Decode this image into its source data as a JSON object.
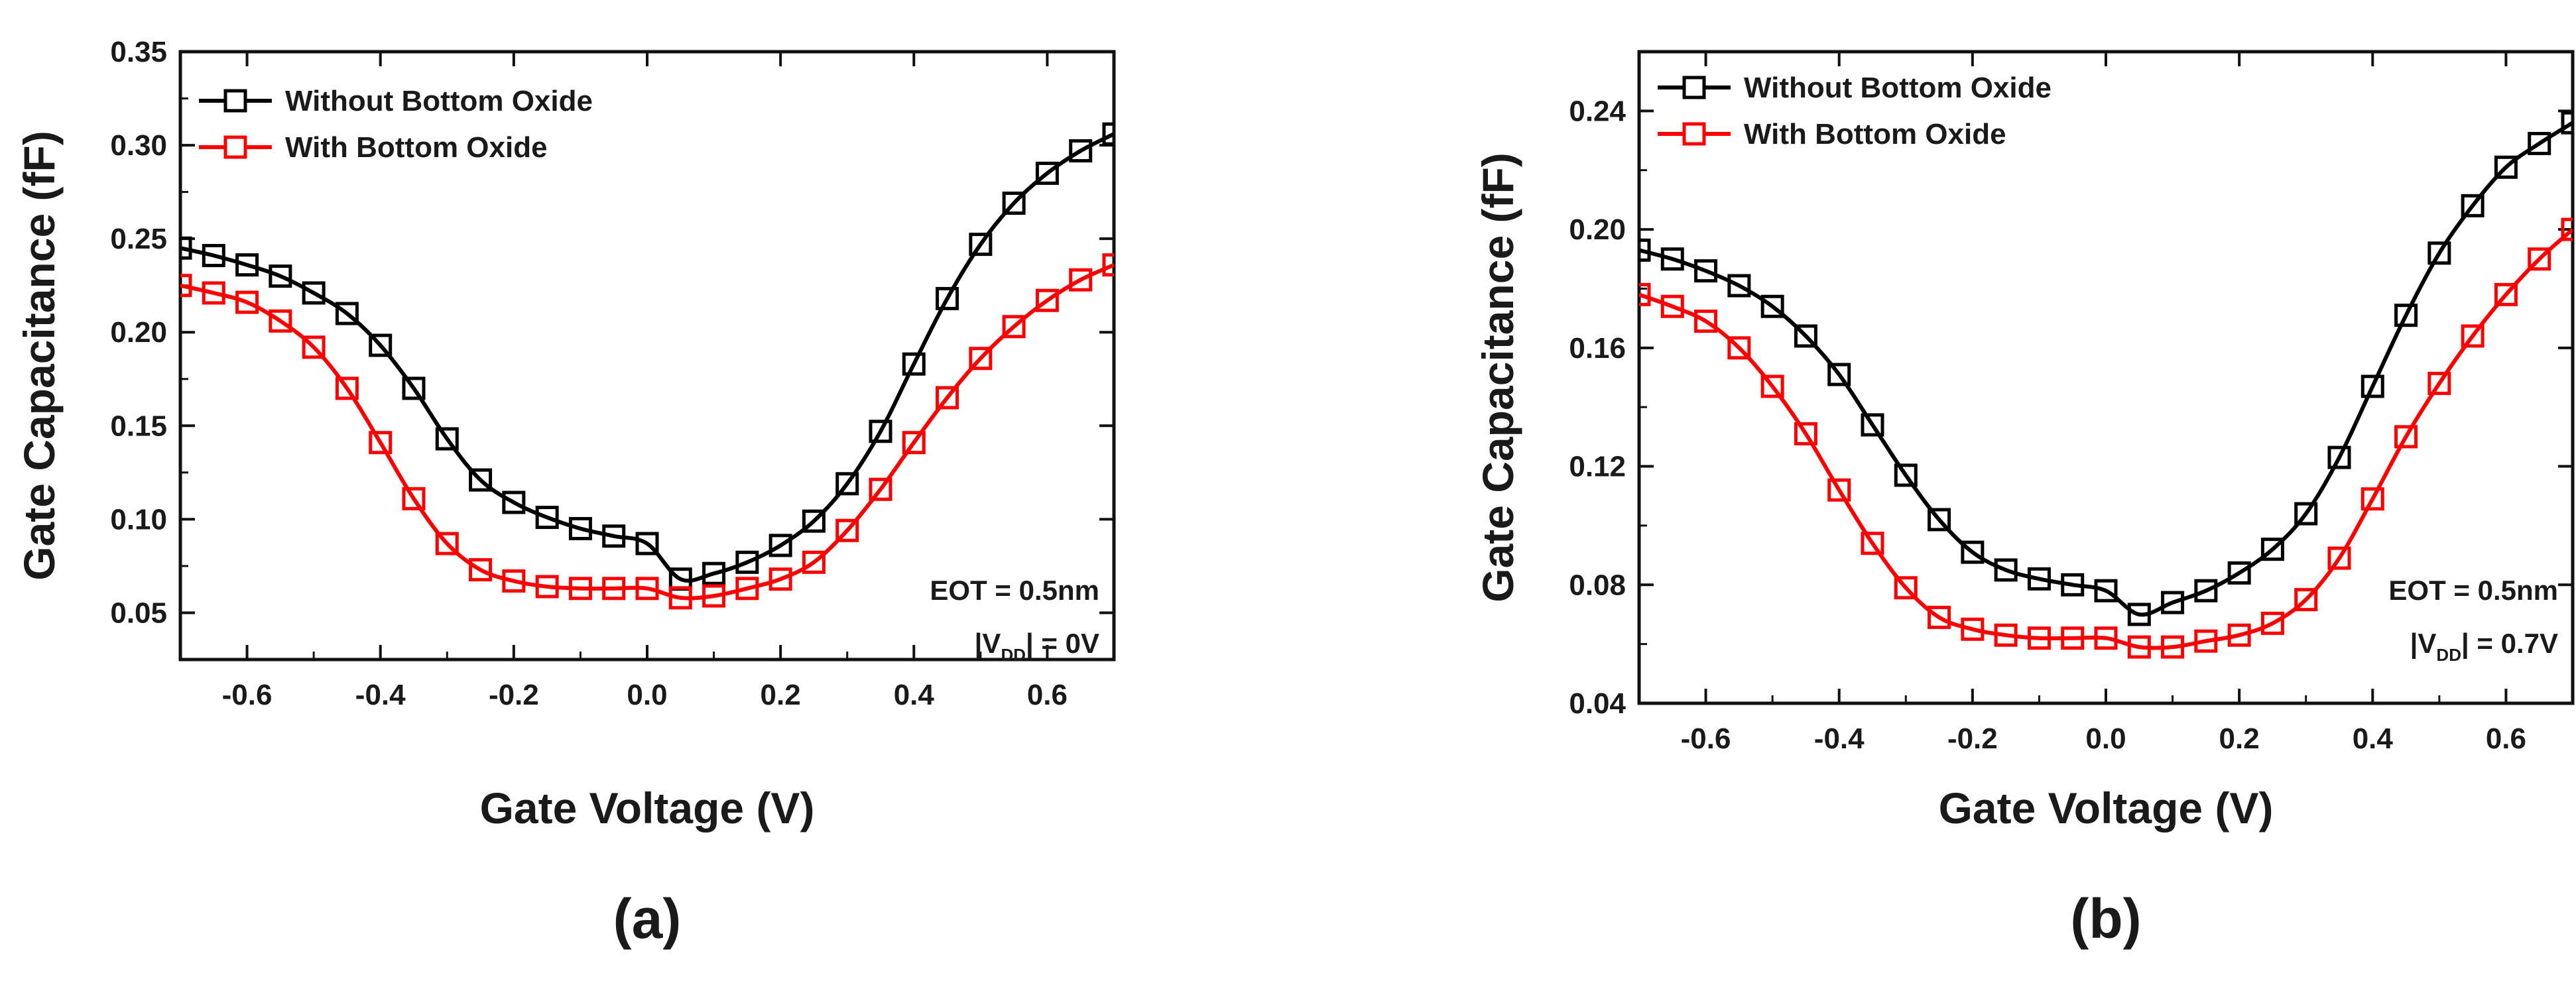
{
  "chart_data": [
    {
      "type": "line",
      "panel_label": "(a)",
      "xlabel": "Gate Voltage (V)",
      "ylabel": "Gate Capacitance (fF)",
      "xlim": [
        -0.7,
        0.7
      ],
      "ylim": [
        0.025,
        0.35
      ],
      "xticks": [
        -0.6,
        -0.4,
        -0.2,
        0.0,
        0.2,
        0.4,
        0.6
      ],
      "xtick_labels": [
        "-0.6",
        "-0.4",
        "-0.2",
        "0.0",
        "0.2",
        "0.4",
        "0.6"
      ],
      "yticks": [
        0.05,
        0.1,
        0.15,
        0.2,
        0.25,
        0.3,
        0.35
      ],
      "ytick_labels": [
        "0.05",
        "0.10",
        "0.15",
        "0.20",
        "0.25",
        "0.30",
        "0.35"
      ],
      "legend_position": "top-left",
      "annotation": {
        "line1": "EOT = 0.5nm",
        "line2_prefix": "|V",
        "line2_sub": "DD",
        "line2_suffix": "| = 0V"
      },
      "x": [
        -0.7,
        -0.65,
        -0.6,
        -0.55,
        -0.5,
        -0.45,
        -0.4,
        -0.35,
        -0.3,
        -0.25,
        -0.2,
        -0.15,
        -0.1,
        -0.05,
        0.0,
        0.05,
        0.1,
        0.15,
        0.2,
        0.25,
        0.3,
        0.35,
        0.4,
        0.45,
        0.5,
        0.55,
        0.6,
        0.65,
        0.7
      ],
      "series": [
        {
          "name": "Without Bottom Oxide",
          "color": "#000000",
          "values": [
            0.245,
            0.241,
            0.236,
            0.23,
            0.221,
            0.21,
            0.193,
            0.17,
            0.143,
            0.121,
            0.109,
            0.101,
            0.095,
            0.091,
            0.087,
            0.068,
            0.071,
            0.077,
            0.086,
            0.099,
            0.119,
            0.147,
            0.183,
            0.218,
            0.247,
            0.269,
            0.285,
            0.297,
            0.306
          ]
        },
        {
          "name": "With Bottom Oxide",
          "color": "#ff0000",
          "values": [
            0.225,
            0.221,
            0.216,
            0.206,
            0.192,
            0.17,
            0.141,
            0.111,
            0.087,
            0.073,
            0.067,
            0.064,
            0.063,
            0.063,
            0.063,
            0.058,
            0.059,
            0.063,
            0.068,
            0.077,
            0.094,
            0.116,
            0.141,
            0.165,
            0.186,
            0.203,
            0.217,
            0.228,
            0.236
          ]
        }
      ]
    },
    {
      "type": "line",
      "panel_label": "(b)",
      "xlabel": "Gate Voltage (V)",
      "ylabel": "Gate Capacitance (fF)",
      "xlim": [
        -0.7,
        0.7
      ],
      "ylim": [
        0.04,
        0.26
      ],
      "xticks": [
        -0.6,
        -0.4,
        -0.2,
        0.0,
        0.2,
        0.4,
        0.6
      ],
      "xtick_labels": [
        "-0.6",
        "-0.4",
        "-0.2",
        "0.0",
        "0.2",
        "0.4",
        "0.6"
      ],
      "yticks": [
        0.04,
        0.08,
        0.12,
        0.16,
        0.2,
        0.24
      ],
      "ytick_labels": [
        "0.04",
        "0.08",
        "0.12",
        "0.16",
        "0.20",
        "0.24"
      ],
      "legend_position": "top-left",
      "annotation": {
        "line1": "EOT = 0.5nm",
        "line2_prefix": "|V",
        "line2_sub": "DD",
        "line2_suffix": "| = 0.7V"
      },
      "x": [
        -0.7,
        -0.65,
        -0.6,
        -0.55,
        -0.5,
        -0.45,
        -0.4,
        -0.35,
        -0.3,
        -0.25,
        -0.2,
        -0.15,
        -0.1,
        -0.05,
        0.0,
        0.05,
        0.1,
        0.15,
        0.2,
        0.25,
        0.3,
        0.35,
        0.4,
        0.45,
        0.5,
        0.55,
        0.6,
        0.65,
        0.7
      ],
      "series": [
        {
          "name": "Without Bottom Oxide",
          "color": "#000000",
          "values": [
            0.193,
            0.19,
            0.186,
            0.181,
            0.174,
            0.164,
            0.151,
            0.134,
            0.117,
            0.102,
            0.091,
            0.085,
            0.082,
            0.08,
            0.078,
            0.07,
            0.074,
            0.078,
            0.084,
            0.092,
            0.104,
            0.123,
            0.147,
            0.171,
            0.192,
            0.208,
            0.221,
            0.229,
            0.236
          ]
        },
        {
          "name": "With Bottom Oxide",
          "color": "#ff0000",
          "values": [
            0.178,
            0.174,
            0.169,
            0.16,
            0.147,
            0.131,
            0.112,
            0.094,
            0.079,
            0.069,
            0.065,
            0.063,
            0.062,
            0.062,
            0.062,
            0.059,
            0.059,
            0.061,
            0.063,
            0.067,
            0.075,
            0.089,
            0.109,
            0.13,
            0.148,
            0.164,
            0.178,
            0.19,
            0.2
          ]
        }
      ]
    }
  ]
}
